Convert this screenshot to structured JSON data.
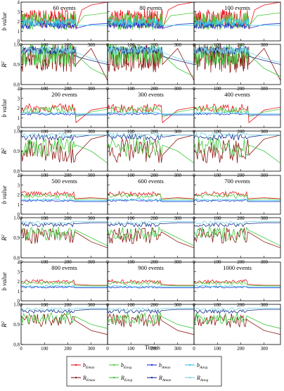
{
  "colors": {
    "b_emax": "#e8141c",
    "b_eavg": "#4fc83c",
    "b_amax": "#1f2fd0",
    "b_aavg": "#37c8e6",
    "r_emax": "#8c1a14",
    "r_eavg": "#3cc83c",
    "r_amax": "#1b2a8c",
    "r_aavg": "#78d2e0"
  },
  "labels": {
    "b_axis": "b value",
    "r_axis_base": "R",
    "r_axis_sup": "2",
    "x_axis": "Time/s",
    "legend": [
      {
        "key": "b_emax",
        "main": "b",
        "sub": "Emax"
      },
      {
        "key": "b_eavg",
        "main": "b",
        "sub": "Eavg"
      },
      {
        "key": "b_amax",
        "main": "b",
        "sub": "Amax"
      },
      {
        "key": "b_aavg",
        "main": "b",
        "sub": "Aavg"
      },
      {
        "key": "r_emax",
        "main": "R",
        "sub": "Emax"
      },
      {
        "key": "r_eavg",
        "main": "R",
        "sub": "Eavg"
      },
      {
        "key": "r_amax",
        "main": "R",
        "sub": "Amax"
      },
      {
        "key": "r_aavg",
        "main": "R",
        "sub": "Aavg"
      }
    ]
  },
  "chart_data": {
    "type": "line",
    "x_range": [
      0,
      370
    ],
    "x_ticks": [
      "0",
      "100",
      "200",
      "300"
    ],
    "x_tick_values": [
      0,
      100,
      200,
      300
    ],
    "groups": [
      {
        "events": [
          "60 events",
          "80 events",
          "100 events"
        ],
        "b_ylim": [
          0,
          4
        ],
        "b_ticks": [
          "0",
          "1",
          "2",
          "3",
          "4"
        ],
        "b_tick_values": [
          0,
          1,
          2,
          3,
          4
        ],
        "r_ylim": [
          0.8,
          1.0
        ],
        "r_ticks": [
          "0.8",
          "0.9",
          "1.0"
        ],
        "r_tick_values": [
          0.8,
          0.9,
          1.0
        ],
        "b_series": {
          "b_emax": {
            "base": 2.3,
            "noise": 1.0,
            "tail": [
              [
                235,
                1.2
              ],
              [
                260,
                3.2
              ],
              [
                300,
                3.7
              ],
              [
                370,
                4.0
              ]
            ]
          },
          "b_eavg": {
            "base": 2.0,
            "noise": 0.9,
            "tail": [
              [
                235,
                1.5
              ],
              [
                270,
                2.6
              ],
              [
                370,
                2.9
              ]
            ]
          },
          "b_amax": {
            "base": 1.6,
            "noise": 0.35,
            "tail": [
              [
                235,
                1.3
              ],
              [
                300,
                1.7
              ],
              [
                370,
                1.8
              ]
            ]
          },
          "b_aavg": {
            "base": 1.9,
            "noise": 0.4,
            "tail": [
              [
                235,
                1.6
              ],
              [
                300,
                1.6
              ],
              [
                370,
                1.6
              ]
            ]
          }
        },
        "r_series": {
          "r_emax": {
            "base": 0.93,
            "noise": 0.07,
            "tail": [
              [
                235,
                0.9
              ],
              [
                300,
                0.98
              ],
              [
                370,
                0.82
              ]
            ]
          },
          "r_eavg": {
            "base": 0.95,
            "noise": 0.06,
            "tail": [
              [
                235,
                0.95
              ],
              [
                300,
                0.88
              ],
              [
                370,
                0.84
              ]
            ]
          },
          "r_amax": {
            "base": 0.97,
            "noise": 0.02,
            "tail": [
              [
                235,
                0.94
              ],
              [
                300,
                0.92
              ],
              [
                370,
                0.9
              ]
            ]
          },
          "r_aavg": {
            "base": 0.97,
            "noise": 0.02,
            "tail": [
              [
                235,
                0.96
              ],
              [
                300,
                0.93
              ],
              [
                370,
                0.91
              ]
            ]
          }
        }
      },
      {
        "events": [
          "200 events",
          "300 events",
          "400 events"
        ],
        "b_ylim": [
          0,
          4
        ],
        "b_ticks": [
          "0",
          "1",
          "2",
          "3",
          "4"
        ],
        "b_tick_values": [
          0,
          1,
          2,
          3,
          4
        ],
        "r_ylim": [
          0.8,
          1.0
        ],
        "r_ticks": [
          "0.8",
          "0.9",
          "1.0"
        ],
        "r_tick_values": [
          0.8,
          0.9,
          1.0
        ],
        "b_series": {
          "b_emax": {
            "base": 2.0,
            "noise": 0.45,
            "tail": [
              [
                235,
                0.5
              ],
              [
                300,
                1.8
              ],
              [
                370,
                2.1
              ]
            ]
          },
          "b_eavg": {
            "base": 1.8,
            "noise": 0.35,
            "tail": [
              [
                235,
                1.1
              ],
              [
                300,
                1.6
              ],
              [
                370,
                1.9
              ]
            ]
          },
          "b_amax": {
            "base": 1.4,
            "noise": 0.12,
            "tail": [
              [
                235,
                1.3
              ],
              [
                300,
                1.3
              ],
              [
                370,
                1.3
              ]
            ]
          },
          "b_aavg": {
            "base": 1.5,
            "noise": 0.12,
            "tail": [
              [
                235,
                1.4
              ],
              [
                300,
                1.4
              ],
              [
                370,
                1.4
              ]
            ]
          }
        },
        "r_series": {
          "r_emax": {
            "base": 0.9,
            "noise": 0.06,
            "tail": [
              [
                235,
                0.88
              ],
              [
                300,
                0.96
              ],
              [
                370,
                0.98
              ]
            ]
          },
          "r_eavg": {
            "base": 0.92,
            "noise": 0.05,
            "tail": [
              [
                235,
                0.93
              ],
              [
                300,
                0.9
              ],
              [
                370,
                0.84
              ]
            ]
          },
          "r_amax": {
            "base": 0.97,
            "noise": 0.015,
            "tail": [
              [
                235,
                0.97
              ],
              [
                300,
                0.98
              ],
              [
                370,
                0.98
              ]
            ]
          },
          "r_aavg": {
            "base": 0.98,
            "noise": 0.012,
            "tail": [
              [
                235,
                0.98
              ],
              [
                300,
                0.98
              ],
              [
                370,
                0.98
              ]
            ]
          }
        }
      },
      {
        "events": [
          "500 events",
          "600 events",
          "700 events"
        ],
        "b_ylim": [
          0,
          4
        ],
        "b_ticks": [
          "0",
          "1",
          "2",
          "3",
          "4"
        ],
        "b_tick_values": [
          0,
          1,
          2,
          3,
          4
        ],
        "r_ylim": [
          0.8,
          1.0
        ],
        "r_ticks": [
          "0.8",
          "0.9",
          "1.0"
        ],
        "r_tick_values": [
          0.8,
          0.9,
          1.0
        ],
        "b_series": {
          "b_emax": {
            "base": 2.1,
            "noise": 0.25,
            "tail": [
              [
                230,
                1.6
              ],
              [
                300,
                1.7
              ],
              [
                370,
                1.6
              ]
            ]
          },
          "b_eavg": {
            "base": 1.9,
            "noise": 0.22,
            "tail": [
              [
                230,
                1.5
              ],
              [
                300,
                1.6
              ],
              [
                370,
                1.5
              ]
            ]
          },
          "b_amax": {
            "base": 1.4,
            "noise": 0.1,
            "tail": [
              [
                230,
                1.3
              ],
              [
                300,
                1.3
              ],
              [
                370,
                1.3
              ]
            ]
          },
          "b_aavg": {
            "base": 1.5,
            "noise": 0.1,
            "tail": [
              [
                230,
                1.4
              ],
              [
                300,
                1.4
              ],
              [
                370,
                1.4
              ]
            ]
          }
        },
        "r_series": {
          "r_emax": {
            "base": 0.91,
            "noise": 0.04,
            "tail": [
              [
                230,
                0.93
              ],
              [
                300,
                0.88
              ],
              [
                370,
                0.85
              ]
            ]
          },
          "r_eavg": {
            "base": 0.92,
            "noise": 0.035,
            "tail": [
              [
                230,
                0.94
              ],
              [
                300,
                0.9
              ],
              [
                370,
                0.86
              ]
            ]
          },
          "r_amax": {
            "base": 0.965,
            "noise": 0.01,
            "tail": [
              [
                230,
                0.97
              ],
              [
                300,
                0.975
              ],
              [
                370,
                0.975
              ]
            ]
          },
          "r_aavg": {
            "base": 0.975,
            "noise": 0.008,
            "tail": [
              [
                230,
                0.98
              ],
              [
                300,
                0.98
              ],
              [
                370,
                0.98
              ]
            ]
          }
        }
      },
      {
        "events": [
          "800 events",
          "900 events",
          "1000 events"
        ],
        "b_ylim": [
          0,
          4
        ],
        "b_ticks": [
          "0",
          "1",
          "2",
          "3",
          "4"
        ],
        "b_tick_values": [
          0,
          1,
          2,
          3,
          4
        ],
        "r_ylim": [
          0.8,
          1.0
        ],
        "r_ticks": [
          "0.8",
          "0.9",
          "1.0"
        ],
        "r_tick_values": [
          0.8,
          0.9,
          1.0
        ],
        "b_series": {
          "b_emax": {
            "base": 2.0,
            "noise": 0.2,
            "tail": [
              [
                230,
                1.7
              ],
              [
                300,
                1.6
              ],
              [
                370,
                1.6
              ]
            ]
          },
          "b_eavg": {
            "base": 1.85,
            "noise": 0.18,
            "tail": [
              [
                230,
                1.6
              ],
              [
                300,
                1.55
              ],
              [
                370,
                1.55
              ]
            ]
          },
          "b_amax": {
            "base": 1.4,
            "noise": 0.08,
            "tail": [
              [
                230,
                1.35
              ],
              [
                300,
                1.35
              ],
              [
                370,
                1.35
              ]
            ]
          },
          "b_aavg": {
            "base": 1.5,
            "noise": 0.08,
            "tail": [
              [
                230,
                1.45
              ],
              [
                300,
                1.45
              ],
              [
                370,
                1.45
              ]
            ]
          }
        },
        "r_series": {
          "r_emax": {
            "base": 0.92,
            "noise": 0.035,
            "tail": [
              [
                230,
                0.92
              ],
              [
                300,
                0.87
              ],
              [
                370,
                0.85
              ]
            ]
          },
          "r_eavg": {
            "base": 0.93,
            "noise": 0.03,
            "tail": [
              [
                230,
                0.94
              ],
              [
                300,
                0.9
              ],
              [
                370,
                0.88
              ]
            ]
          },
          "r_amax": {
            "base": 0.965,
            "noise": 0.01,
            "tail": [
              [
                230,
                0.97
              ],
              [
                300,
                0.975
              ],
              [
                370,
                0.975
              ]
            ]
          },
          "r_aavg": {
            "base": 0.975,
            "noise": 0.008,
            "tail": [
              [
                230,
                0.98
              ],
              [
                300,
                0.98
              ],
              [
                370,
                0.98
              ]
            ]
          }
        }
      }
    ]
  }
}
